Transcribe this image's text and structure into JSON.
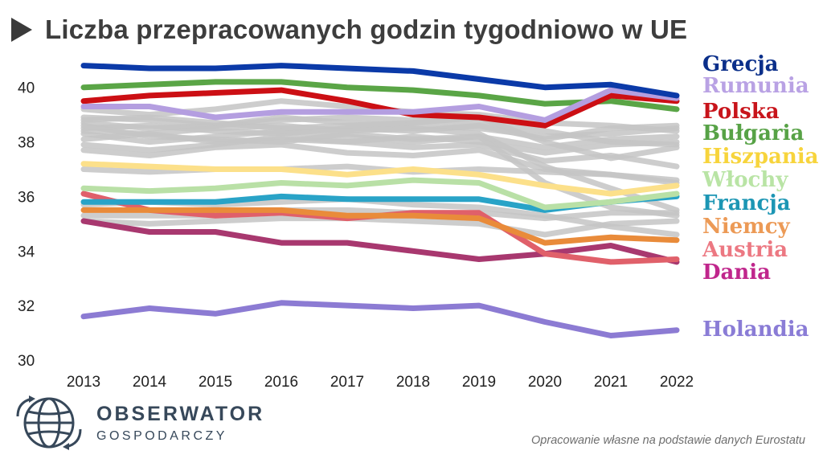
{
  "header": {
    "title": "Liczba przepracowanych godzin tygodniowo w UE",
    "play_icon": "play-triangle-icon"
  },
  "source_note": "Opracowanie własne na podstawie danych Eurostatu",
  "logo": {
    "name": "OBSERWATOR",
    "subtitle": "GOSPODARCZY",
    "icon": "globe-icon"
  },
  "chart_data": {
    "type": "line",
    "title": "Liczba przepracowanych godzin tygodniowo w UE",
    "xlabel": "",
    "ylabel": "",
    "x": [
      2013,
      2014,
      2015,
      2016,
      2017,
      2018,
      2019,
      2020,
      2021,
      2022
    ],
    "ylim": [
      30,
      41.2
    ],
    "yticks": [
      30,
      32,
      34,
      36,
      38,
      40
    ],
    "grid": false,
    "legend": "right",
    "background_series_color": "#c4c4c4",
    "background_series": [
      [
        39.2,
        39.0,
        39.2,
        39.5,
        39.3,
        39.1,
        39.0,
        38.7,
        38.6,
        38.4
      ],
      [
        38.9,
        38.8,
        38.6,
        38.9,
        38.7,
        38.6,
        38.5,
        38.2,
        38.3,
        38.5
      ],
      [
        38.7,
        38.5,
        38.6,
        38.8,
        38.9,
        38.8,
        38.7,
        38.4,
        38.0,
        37.9
      ],
      [
        38.5,
        38.6,
        38.4,
        38.3,
        38.5,
        38.4,
        38.6,
        38.1,
        38.5,
        38.6
      ],
      [
        38.3,
        38.0,
        38.2,
        38.4,
        38.2,
        38.0,
        38.2,
        37.8,
        38.1,
        38.2
      ],
      [
        38.1,
        38.3,
        38.0,
        38.1,
        38.0,
        38.2,
        38.0,
        37.6,
        37.9,
        38.0
      ],
      [
        37.9,
        37.7,
        37.9,
        38.2,
        38.0,
        37.8,
        37.9,
        37.3,
        37.5,
        37.1
      ],
      [
        37.7,
        37.5,
        37.8,
        37.9,
        37.6,
        37.5,
        37.7,
        37.0,
        36.8,
        36.6
      ],
      [
        38.8,
        38.9,
        38.7,
        38.5,
        38.6,
        38.7,
        38.9,
        38.0,
        37.4,
        37.8
      ],
      [
        38.4,
        38.3,
        38.5,
        38.6,
        38.4,
        38.5,
        38.3,
        37.1,
        36.3,
        35.5
      ],
      [
        38.6,
        38.2,
        38.1,
        38.0,
        38.3,
        38.1,
        38.2,
        36.5,
        35.6,
        35.3
      ],
      [
        37.0,
        36.9,
        37.0,
        37.0,
        37.1,
        36.9,
        37.0,
        36.9,
        36.8,
        36.5
      ],
      [
        35.3,
        35.3,
        35.3,
        35.5,
        35.5,
        35.4,
        35.4,
        35.2,
        35.4,
        35.4
      ],
      [
        35.7,
        35.8,
        35.7,
        35.8,
        35.9,
        35.7,
        35.6,
        35.3,
        34.9,
        34.6
      ],
      [
        35.1,
        35.0,
        35.1,
        35.2,
        35.2,
        35.1,
        35.0,
        34.6,
        35.0,
        35.1
      ]
    ],
    "series": [
      {
        "name": "Grecja",
        "color": "#0b3aa8",
        "values": [
          40.8,
          40.7,
          40.7,
          40.8,
          40.7,
          40.6,
          40.3,
          40.0,
          40.1,
          39.7
        ]
      },
      {
        "name": "Rumunia",
        "color": "#b49ee0",
        "values": [
          39.3,
          39.3,
          38.9,
          39.1,
          39.1,
          39.1,
          39.3,
          38.8,
          39.9,
          39.6
        ]
      },
      {
        "name": "Polska",
        "color": "#cc0f14",
        "values": [
          39.5,
          39.7,
          39.8,
          39.9,
          39.5,
          39.0,
          38.9,
          38.6,
          39.7,
          39.5
        ]
      },
      {
        "name": "Bułgaria",
        "color": "#5aa546",
        "values": [
          40.0,
          40.1,
          40.2,
          40.2,
          40.0,
          39.9,
          39.7,
          39.4,
          39.5,
          39.2
        ]
      },
      {
        "name": "Hiszpania",
        "color": "#fce08a",
        "values": [
          37.2,
          37.1,
          37.0,
          37.0,
          36.8,
          37.0,
          36.8,
          36.4,
          36.1,
          36.4
        ]
      },
      {
        "name": "Włochy",
        "color": "#b9e0a6",
        "values": [
          36.3,
          36.2,
          36.3,
          36.5,
          36.4,
          36.6,
          36.5,
          35.6,
          35.8,
          36.1
        ]
      },
      {
        "name": "Francja",
        "color": "#29a3c7",
        "values": [
          35.8,
          35.8,
          35.8,
          36.0,
          35.9,
          35.9,
          35.9,
          35.5,
          35.8,
          36.0
        ]
      },
      {
        "name": "Niemcy",
        "color": "#e98b3a",
        "values": [
          35.5,
          35.5,
          35.5,
          35.5,
          35.3,
          35.3,
          35.2,
          34.3,
          34.5,
          34.4
        ]
      },
      {
        "name": "Austria",
        "color": "#e0606a",
        "values": [
          36.1,
          35.5,
          35.3,
          35.4,
          35.2,
          35.4,
          35.4,
          33.9,
          33.6,
          33.7
        ]
      },
      {
        "name": "Dania",
        "color": "#a8386f",
        "values": [
          35.1,
          34.7,
          34.7,
          34.3,
          34.3,
          34.0,
          33.7,
          33.9,
          34.2,
          33.6
        ]
      },
      {
        "name": "Holandia",
        "color": "#8c7bd3",
        "values": [
          31.6,
          31.9,
          31.7,
          32.1,
          32.0,
          31.9,
          32.0,
          31.4,
          30.9,
          31.1
        ]
      }
    ],
    "legend_labels": [
      {
        "name": "Grecja",
        "color": "#0b2f8a"
      },
      {
        "name": "Rumunia",
        "color": "#b9a2e4"
      },
      {
        "name": "Polska",
        "color": "#c8141b"
      },
      {
        "name": "Bułgaria",
        "color": "#57a246"
      },
      {
        "name": "Hiszpania",
        "color": "#f7d43c"
      },
      {
        "name": "Włochy",
        "color": "#b9e4a5"
      },
      {
        "name": "Francja",
        "color": "#1c96b4"
      },
      {
        "name": "Niemcy",
        "color": "#ec9a56"
      },
      {
        "name": "Austria",
        "color": "#ec7882"
      },
      {
        "name": "Dania",
        "color": "#c0268c"
      },
      {
        "name": "Holandia",
        "color": "#8a7cd6"
      }
    ]
  }
}
